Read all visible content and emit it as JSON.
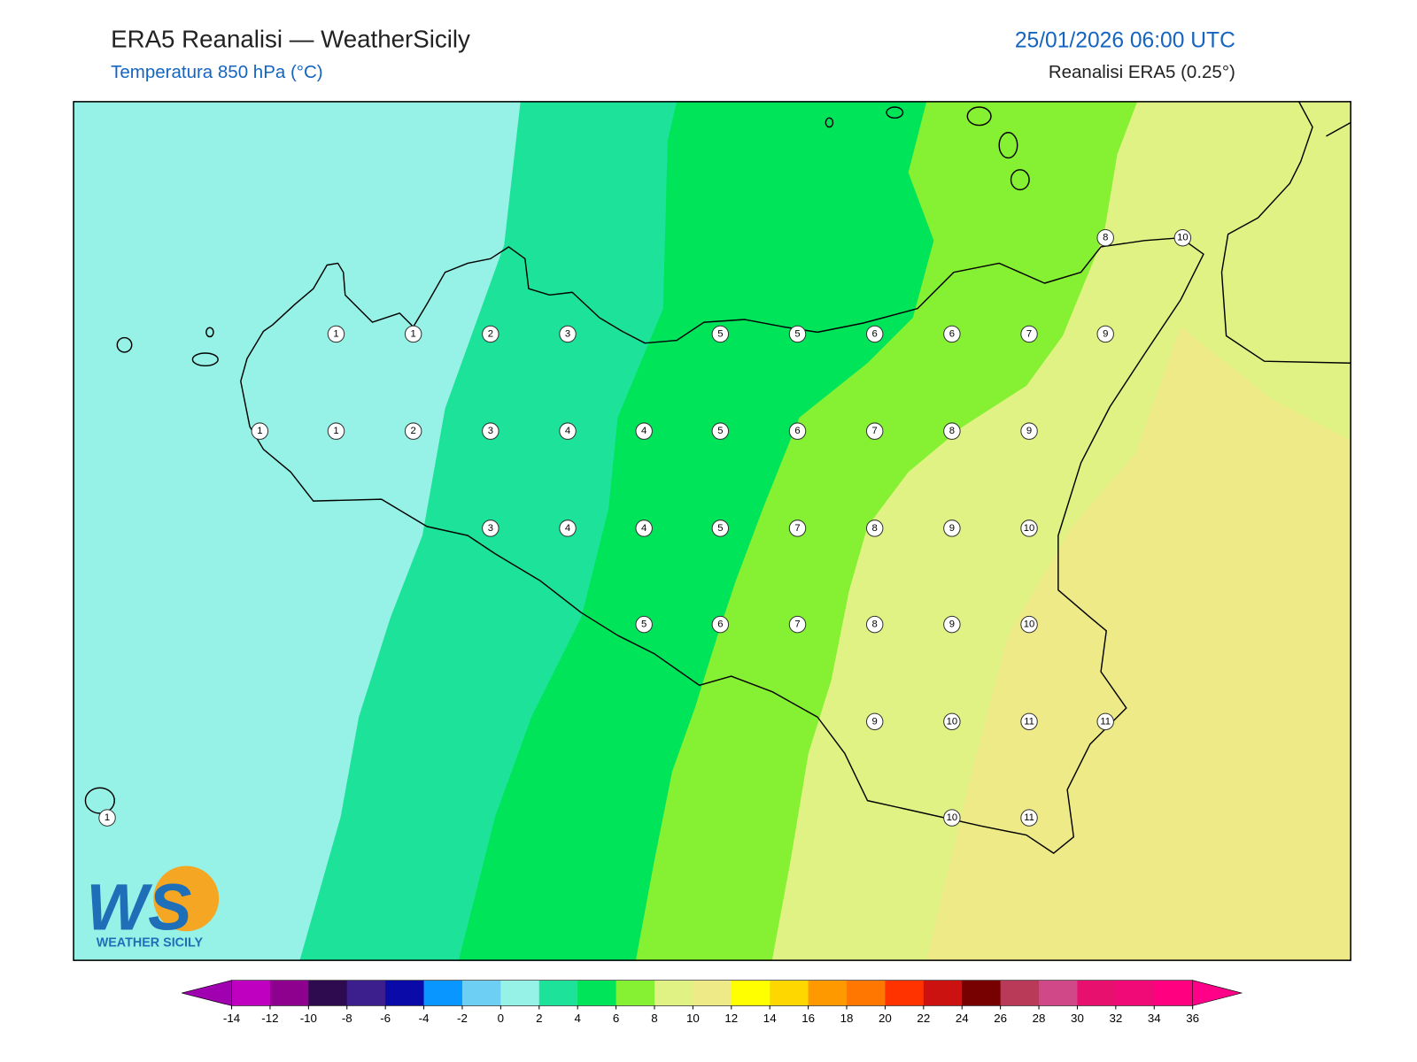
{
  "header": {
    "title": "ERA5 Reanalisi — WeatherSicily",
    "subtitle": "Temperatura 850 hPa (°C)",
    "valid_time": "25/01/2026 06:00 UTC",
    "source": "Reanalisi ERA5 (0.25°)"
  },
  "stations": [
    1,
    1,
    2,
    3,
    5,
    5,
    6,
    6,
    7,
    9,
    8,
    10,
    1,
    1,
    2,
    3,
    4,
    4,
    5,
    6,
    7,
    8,
    9,
    3,
    4,
    4,
    5,
    7,
    8,
    9,
    10,
    5,
    6,
    7,
    8,
    9,
    10,
    9,
    10,
    11,
    11,
    1,
    10,
    11
  ],
  "colorbar": {
    "ticks": [
      -14,
      -12,
      -10,
      -8,
      -6,
      -4,
      -2,
      0,
      2,
      4,
      6,
      8,
      10,
      12,
      14,
      16,
      18,
      20,
      22,
      24,
      26,
      28,
      30,
      32,
      34,
      36
    ],
    "colors": [
      "#c000c0",
      "#8e008e",
      "#2e0a4f",
      "#3c1e8c",
      "#0a0aa8",
      "#0a96ff",
      "#6ecff5",
      "#96f2e6",
      "#1de39a",
      "#00e45a",
      "#86f032",
      "#e0f283",
      "#eeea88",
      "#ffff00",
      "#ffd700",
      "#ff9900",
      "#ff7700",
      "#ff3300",
      "#cc1111",
      "#770000",
      "#b83a58",
      "#d04888",
      "#e8106e",
      "#f00a78",
      "#ff0080"
    ],
    "under_color": "#a000b0",
    "over_color": "#ff0088"
  },
  "logo": {
    "mark": "WS",
    "text": "WEATHER SICILY"
  }
}
